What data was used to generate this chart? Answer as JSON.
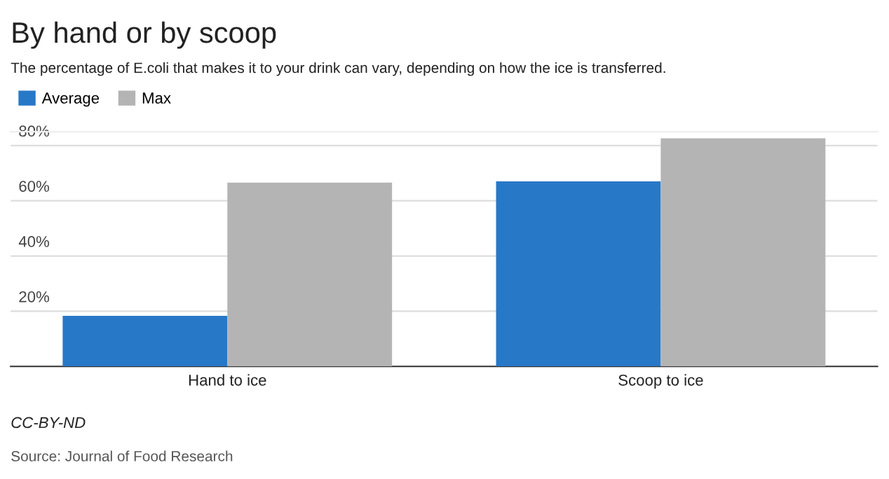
{
  "chart_data": {
    "type": "bar",
    "title": "By hand or by scoop",
    "subtitle": "The percentage of E.coli that makes it to your drink can vary, depending on how the ice is transferred.",
    "categories": [
      "Hand to ice",
      "Scoop to ice"
    ],
    "series": [
      {
        "name": "Average",
        "color": "#2878c8",
        "values": [
          18.3,
          67.0
        ]
      },
      {
        "name": "Max",
        "color": "#b4b4b4",
        "values": [
          66.6,
          82.6
        ]
      }
    ],
    "ylim": [
      0,
      85
    ],
    "yticks": [
      {
        "value": 0,
        "label": null
      },
      {
        "value": 20,
        "label": "20%"
      },
      {
        "value": 40,
        "label": "40%"
      },
      {
        "value": 60,
        "label": "60%"
      },
      {
        "value": 80,
        "label": "80%"
      }
    ],
    "grid": "y",
    "legend": "top left",
    "annotations": [
      "CC-BY-ND",
      "Source: Journal of Food Research"
    ]
  }
}
